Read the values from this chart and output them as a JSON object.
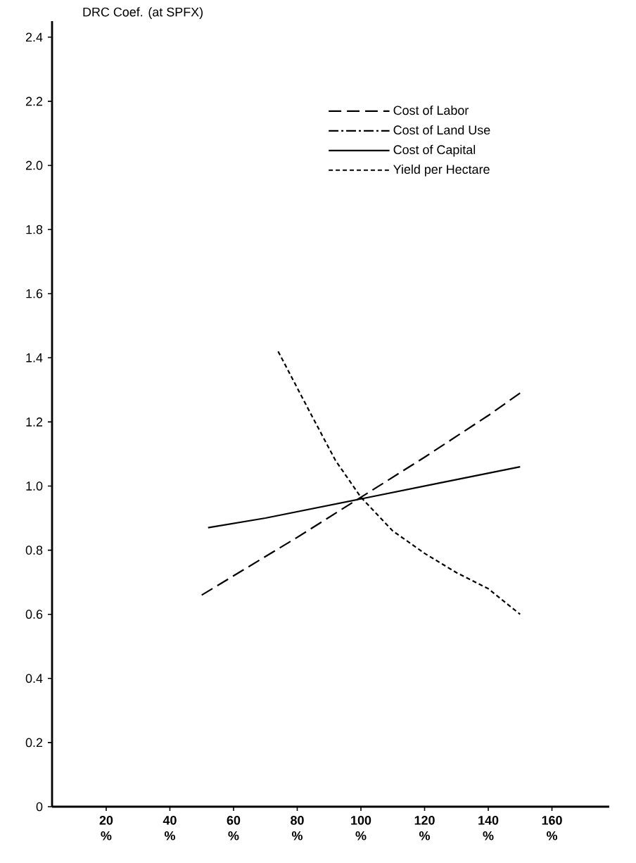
{
  "chart_data": {
    "type": "line",
    "ylabel": "DRC Coef. (at SPFX)",
    "xlim": [
      3,
      178
    ],
    "ylim": [
      0,
      2.45
    ],
    "xticks": [
      {
        "value": 20,
        "label": "20 %"
      },
      {
        "value": 40,
        "label": "40 %"
      },
      {
        "value": 60,
        "label": "60 %"
      },
      {
        "value": 80,
        "label": "80 %"
      },
      {
        "value": 100,
        "label": "100 %"
      },
      {
        "value": 120,
        "label": "120 %"
      },
      {
        "value": 140,
        "label": "140 %"
      },
      {
        "value": 160,
        "label": "160 %"
      }
    ],
    "yticks": [
      0,
      0.2,
      0.4,
      0.6,
      0.8,
      {
        "value": 1,
        "label": "1.0"
      },
      1.2,
      1.4,
      1.6,
      1.8,
      {
        "value": 2,
        "label": "2.0"
      },
      2.2,
      2.4
    ],
    "legend": "top right",
    "series": [
      {
        "name": "Cost of Labor",
        "color": "#000000",
        "line_style": "dashed",
        "x": [
          50,
          60,
          80,
          100,
          120,
          140,
          150
        ],
        "values": [
          0.66,
          0.72,
          0.84,
          0.965,
          1.09,
          1.22,
          1.29
        ]
      },
      {
        "name": "Cost of Land Use",
        "color": "#000000",
        "line_style": "dashdot"
      },
      {
        "name": "Cost of Capital",
        "color": "#000000",
        "line_style": "solid",
        "x": [
          52,
          70,
          100,
          125,
          150
        ],
        "values": [
          0.87,
          0.9,
          0.96,
          1.01,
          1.06
        ]
      },
      {
        "name": "Yield per Hectare",
        "color": "#000000",
        "line_style": "dotted",
        "x": [
          74,
          84,
          92,
          100,
          110,
          120,
          130,
          140,
          150
        ],
        "values": [
          1.42,
          1.23,
          1.08,
          0.965,
          0.86,
          0.79,
          0.73,
          0.68,
          0.6
        ]
      }
    ]
  }
}
